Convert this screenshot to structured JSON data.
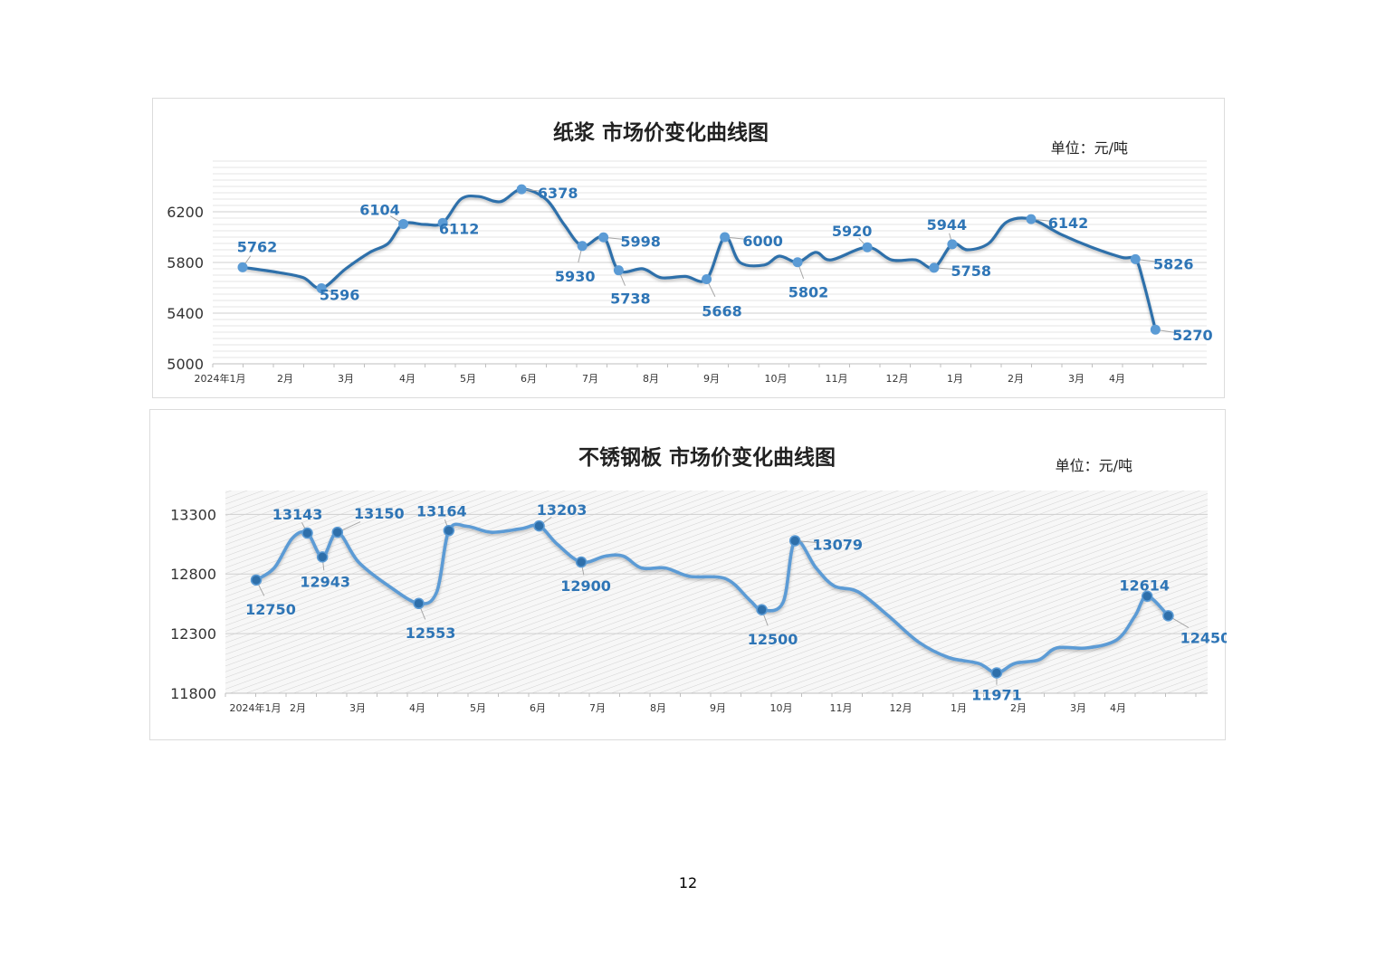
{
  "page": {
    "page_number": "12"
  },
  "chart_data": [
    {
      "type": "line",
      "title": "纸浆 市场价变化曲线图",
      "unit": "单位：元/吨",
      "ylim": [
        5000,
        6600
      ],
      "yticks": [
        5000,
        5400,
        5800,
        6200
      ],
      "grid": "horizontal-dense",
      "x_labels": [
        "2024年1月",
        "2月",
        "3月",
        "4月",
        "5月",
        "6月",
        "7月",
        "8月",
        "9月",
        "10月",
        "11月",
        "12月",
        "1月",
        "2月",
        "3月",
        "4月"
      ],
      "line_color": "#2e6faa",
      "marker_color": "#5b9bd5",
      "label_color": "#2e75b6",
      "curve": [
        [
          0,
          5762
        ],
        [
          0.6,
          5720
        ],
        [
          1.0,
          5680
        ],
        [
          1.3,
          5596
        ],
        [
          1.7,
          5750
        ],
        [
          2.1,
          5880
        ],
        [
          2.4,
          5950
        ],
        [
          2.65,
          6104
        ],
        [
          3.0,
          6100
        ],
        [
          3.3,
          6112
        ],
        [
          3.6,
          6300
        ],
        [
          3.9,
          6320
        ],
        [
          4.25,
          6280
        ],
        [
          4.6,
          6378
        ],
        [
          5.0,
          6300
        ],
        [
          5.3,
          6100
        ],
        [
          5.6,
          5930
        ],
        [
          5.95,
          5998
        ],
        [
          6.2,
          5738
        ],
        [
          6.6,
          5750
        ],
        [
          6.9,
          5680
        ],
        [
          7.3,
          5690
        ],
        [
          7.65,
          5668
        ],
        [
          7.95,
          6000
        ],
        [
          8.2,
          5800
        ],
        [
          8.6,
          5780
        ],
        [
          8.85,
          5850
        ],
        [
          9.15,
          5802
        ],
        [
          9.45,
          5880
        ],
        [
          9.7,
          5820
        ],
        [
          10.3,
          5920
        ],
        [
          10.7,
          5820
        ],
        [
          11.1,
          5820
        ],
        [
          11.4,
          5758
        ],
        [
          11.7,
          5944
        ],
        [
          11.95,
          5900
        ],
        [
          12.3,
          5950
        ],
        [
          12.6,
          6120
        ],
        [
          13.0,
          6142
        ],
        [
          13.5,
          6020
        ],
        [
          14.0,
          5920
        ],
        [
          14.5,
          5840
        ],
        [
          14.72,
          5826
        ],
        [
          14.85,
          5650
        ],
        [
          15.05,
          5270
        ]
      ],
      "points": [
        {
          "x": 0,
          "value": 5762,
          "label": "5762"
        },
        {
          "x": 1.3,
          "value": 5596,
          "label": "5596"
        },
        {
          "x": 2.65,
          "value": 6104,
          "label": "6104"
        },
        {
          "x": 3.3,
          "value": 6112,
          "label": "6112"
        },
        {
          "x": 4.6,
          "value": 6378,
          "label": "6378"
        },
        {
          "x": 5.6,
          "value": 5930,
          "label": "5930"
        },
        {
          "x": 5.95,
          "value": 5998,
          "label": "5998"
        },
        {
          "x": 6.2,
          "value": 5738,
          "label": "5738"
        },
        {
          "x": 7.65,
          "value": 5668,
          "label": "5668"
        },
        {
          "x": 7.95,
          "value": 6000,
          "label": "6000"
        },
        {
          "x": 9.15,
          "value": 5802,
          "label": "5802"
        },
        {
          "x": 10.3,
          "value": 5920,
          "label": "5920"
        },
        {
          "x": 11.4,
          "value": 5758,
          "label": "5758"
        },
        {
          "x": 11.7,
          "value": 5944,
          "label": "5944"
        },
        {
          "x": 13.0,
          "value": 6142,
          "label": "6142"
        },
        {
          "x": 14.72,
          "value": 5826,
          "label": "5826"
        },
        {
          "x": 15.05,
          "value": 5270,
          "label": "5270"
        }
      ]
    },
    {
      "type": "line",
      "title": "不锈钢板 市场价变化曲线图",
      "unit": "单位：元/吨",
      "ylim": [
        11800,
        13500
      ],
      "yticks": [
        11800,
        12300,
        12800,
        13300
      ],
      "grid": "horizontal-with-hatch",
      "x_labels": [
        "2024年1月",
        "2月",
        "3月",
        "4月",
        "5月",
        "6月",
        "7月",
        "8月",
        "9月",
        "10月",
        "11月",
        "12月",
        "1月",
        "2月",
        "3月",
        "4月"
      ],
      "line_color": "#5b9bd5",
      "marker_color": "#2e6faa",
      "label_color": "#2e75b6",
      "curve": [
        [
          0,
          12750
        ],
        [
          0.3,
          12850
        ],
        [
          0.6,
          13100
        ],
        [
          0.85,
          13143
        ],
        [
          1.1,
          12943
        ],
        [
          1.35,
          13150
        ],
        [
          1.7,
          12900
        ],
        [
          2.2,
          12700
        ],
        [
          2.7,
          12553
        ],
        [
          3.0,
          12650
        ],
        [
          3.2,
          13164
        ],
        [
          3.5,
          13200
        ],
        [
          3.9,
          13150
        ],
        [
          4.4,
          13180
        ],
        [
          4.7,
          13203
        ],
        [
          5.0,
          13050
        ],
        [
          5.4,
          12900
        ],
        [
          5.8,
          12950
        ],
        [
          6.1,
          12950
        ],
        [
          6.4,
          12850
        ],
        [
          6.8,
          12850
        ],
        [
          7.2,
          12780
        ],
        [
          7.8,
          12760
        ],
        [
          8.2,
          12580
        ],
        [
          8.4,
          12500
        ],
        [
          8.75,
          12560
        ],
        [
          8.95,
          13079
        ],
        [
          9.3,
          12850
        ],
        [
          9.6,
          12700
        ],
        [
          10.0,
          12650
        ],
        [
          10.5,
          12450
        ],
        [
          11.0,
          12230
        ],
        [
          11.5,
          12100
        ],
        [
          12.0,
          12050
        ],
        [
          12.3,
          11971
        ],
        [
          12.6,
          12050
        ],
        [
          13.0,
          12080
        ],
        [
          13.3,
          12180
        ],
        [
          13.8,
          12180
        ],
        [
          14.3,
          12250
        ],
        [
          14.6,
          12450
        ],
        [
          14.8,
          12614
        ],
        [
          15.15,
          12450
        ]
      ],
      "points": [
        {
          "x": 0,
          "value": 12750,
          "label": "12750"
        },
        {
          "x": 0.85,
          "value": 13143,
          "label": "13143"
        },
        {
          "x": 1.1,
          "value": 12943,
          "label": "12943"
        },
        {
          "x": 1.35,
          "value": 13150,
          "label": "13150"
        },
        {
          "x": 2.7,
          "value": 12553,
          "label": "12553"
        },
        {
          "x": 3.2,
          "value": 13164,
          "label": "13164"
        },
        {
          "x": 4.7,
          "value": 13203,
          "label": "13203"
        },
        {
          "x": 5.4,
          "value": 12900,
          "label": "12900"
        },
        {
          "x": 8.4,
          "value": 12500,
          "label": "12500"
        },
        {
          "x": 8.95,
          "value": 13079,
          "label": "13079"
        },
        {
          "x": 12.3,
          "value": 11971,
          "label": "11971"
        },
        {
          "x": 14.8,
          "value": 12614,
          "label": "12614"
        },
        {
          "x": 15.15,
          "value": 12450,
          "label": "12450"
        }
      ]
    }
  ]
}
